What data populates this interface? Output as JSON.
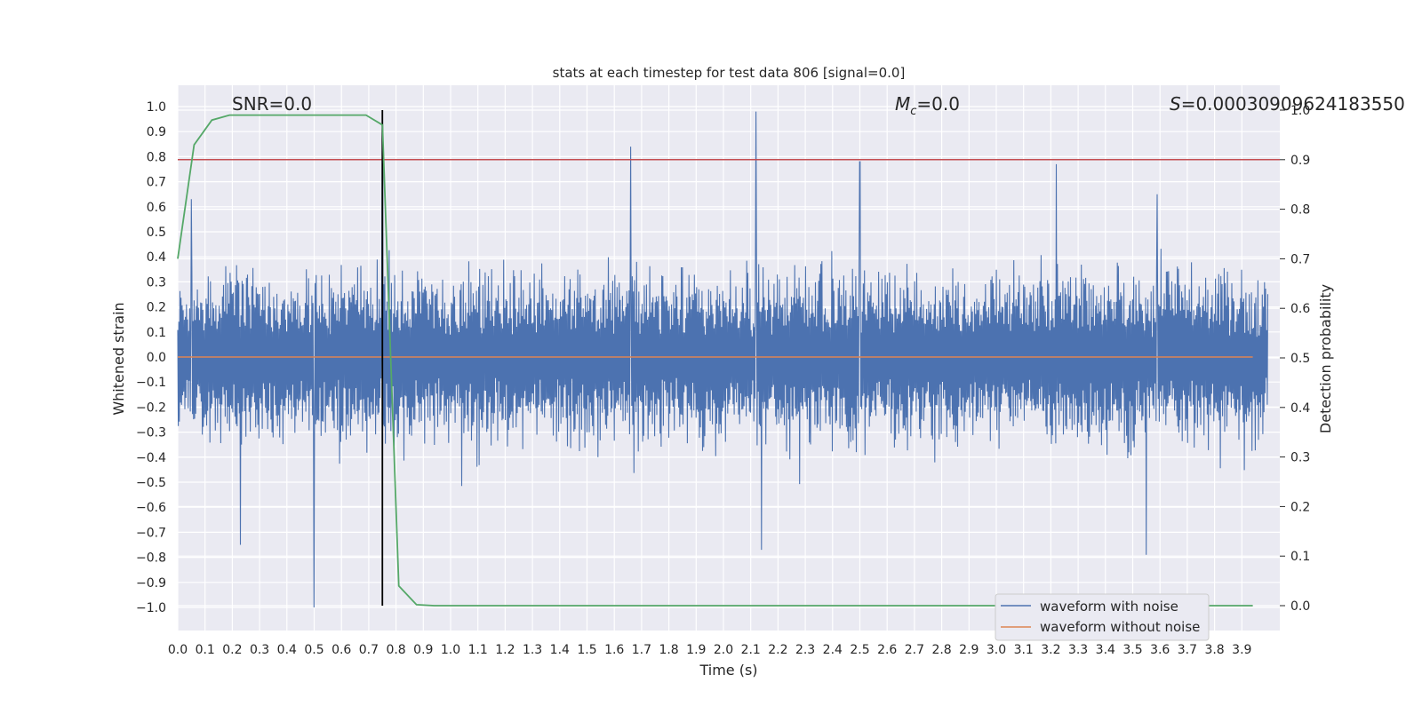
{
  "chart_data": {
    "type": "line",
    "title": "stats at each timestep for test data 806 [signal=0.0]",
    "xlabel": "Time (s)",
    "ylabel": "Whitened strain",
    "y2label": "Detection probability",
    "xlim": [
      0.0,
      4.0
    ],
    "ylim": [
      -1.1,
      1.1
    ],
    "y2lim": [
      -0.05,
      1.05
    ],
    "grid": true,
    "legend_position": "lower-right",
    "x_ticks": [
      "0.0",
      "0.1",
      "0.2",
      "0.3",
      "0.4",
      "0.5",
      "0.6",
      "0.7",
      "0.8",
      "0.9",
      "1.0",
      "1.1",
      "1.2",
      "1.3",
      "1.4",
      "1.5",
      "1.6",
      "1.7",
      "1.8",
      "1.9",
      "2.0",
      "2.1",
      "2.2",
      "2.3",
      "2.4",
      "2.5",
      "2.6",
      "2.7",
      "2.8",
      "2.9",
      "3.0",
      "3.1",
      "3.2",
      "3.3",
      "3.4",
      "3.5",
      "3.6",
      "3.7",
      "3.8",
      "3.9"
    ],
    "y_ticks": [
      "1.0",
      "0.9",
      "0.8",
      "0.7",
      "0.6",
      "0.5",
      "0.4",
      "0.3",
      "0.2",
      "0.1",
      "0.0",
      "−0.1",
      "−0.2",
      "−0.3",
      "−0.4",
      "−0.5",
      "−0.6",
      "−0.7",
      "−0.8",
      "−0.9",
      "−1.0"
    ],
    "y2_ticks": [
      "1.0",
      "0.9",
      "0.8",
      "0.7",
      "0.6",
      "0.5",
      "0.4",
      "0.3",
      "0.2",
      "0.1",
      "0.0"
    ],
    "annotations": {
      "snr": "SNR=0.0",
      "mc_symbol": "M",
      "mc_sub": "c",
      "mc_value": "=0.0",
      "s_symbol": "S",
      "s_value": "=0.00030909624183550"
    },
    "series": [
      {
        "name": "waveform with noise",
        "color": "#4c72b0",
        "axis": "left",
        "peaks": [
          {
            "x": 0.05,
            "y": 0.63
          },
          {
            "x": 0.23,
            "y": -0.75
          },
          {
            "x": 0.5,
            "y": -1.0
          },
          {
            "x": 0.75,
            "y": 0.82
          },
          {
            "x": 1.66,
            "y": 0.84
          },
          {
            "x": 2.12,
            "y": 0.98
          },
          {
            "x": 2.14,
            "y": -0.77
          },
          {
            "x": 2.5,
            "y": 0.78
          },
          {
            "x": 3.22,
            "y": 0.77
          },
          {
            "x": 3.55,
            "y": -0.79
          },
          {
            "x": 3.59,
            "y": 0.65
          }
        ]
      },
      {
        "name": "waveform without noise",
        "color": "#dd8452",
        "axis": "left",
        "x": [
          0.0,
          3.94
        ],
        "y": [
          0.0,
          0.0
        ]
      },
      {
        "name": "Detection probability",
        "color": "#55a868",
        "axis": "right",
        "x": [
          0.0,
          0.06,
          0.125,
          0.19,
          0.25,
          0.5,
          0.69,
          0.75,
          0.81,
          0.875,
          0.94,
          1.0,
          2.0,
          3.0,
          3.94
        ],
        "y": [
          0.7,
          0.93,
          0.98,
          0.99,
          0.99,
          0.99,
          0.99,
          0.97,
          0.04,
          0.002,
          0.0,
          0.0,
          0.0,
          0.0,
          0.0
        ]
      }
    ],
    "threshold": {
      "axis": "right",
      "y": 0.9,
      "color": "#c44e52"
    },
    "marker_line": {
      "x": 0.75,
      "color": "#000000"
    }
  }
}
